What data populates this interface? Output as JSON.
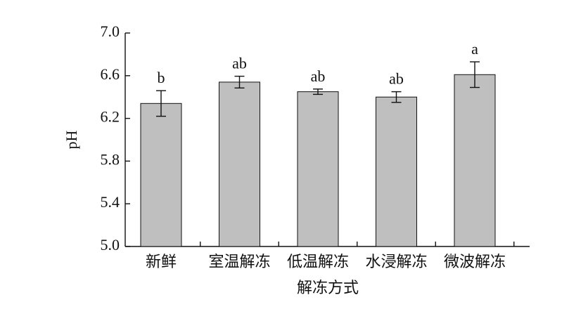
{
  "chart_data": {
    "type": "bar",
    "x_label": "解冻方式",
    "y_label": "pH",
    "categories": [
      "新鲜",
      "室温解冻",
      "低温解冻",
      "水浸解冻",
      "微波解冻"
    ],
    "values": [
      6.34,
      6.54,
      6.45,
      6.4,
      6.61
    ],
    "errors": [
      0.12,
      0.055,
      0.025,
      0.05,
      0.12
    ],
    "annotations": [
      "b",
      "ab",
      "ab",
      "ab",
      "a"
    ],
    "color": "#bfbfbf",
    "ylim": [
      5.0,
      7.0
    ],
    "yticks": [
      {
        "value": 5.0,
        "label": "5.0"
      },
      5.4,
      5.8,
      6.2,
      6.6,
      {
        "value": 7.0,
        "label": "7.0"
      }
    ]
  }
}
